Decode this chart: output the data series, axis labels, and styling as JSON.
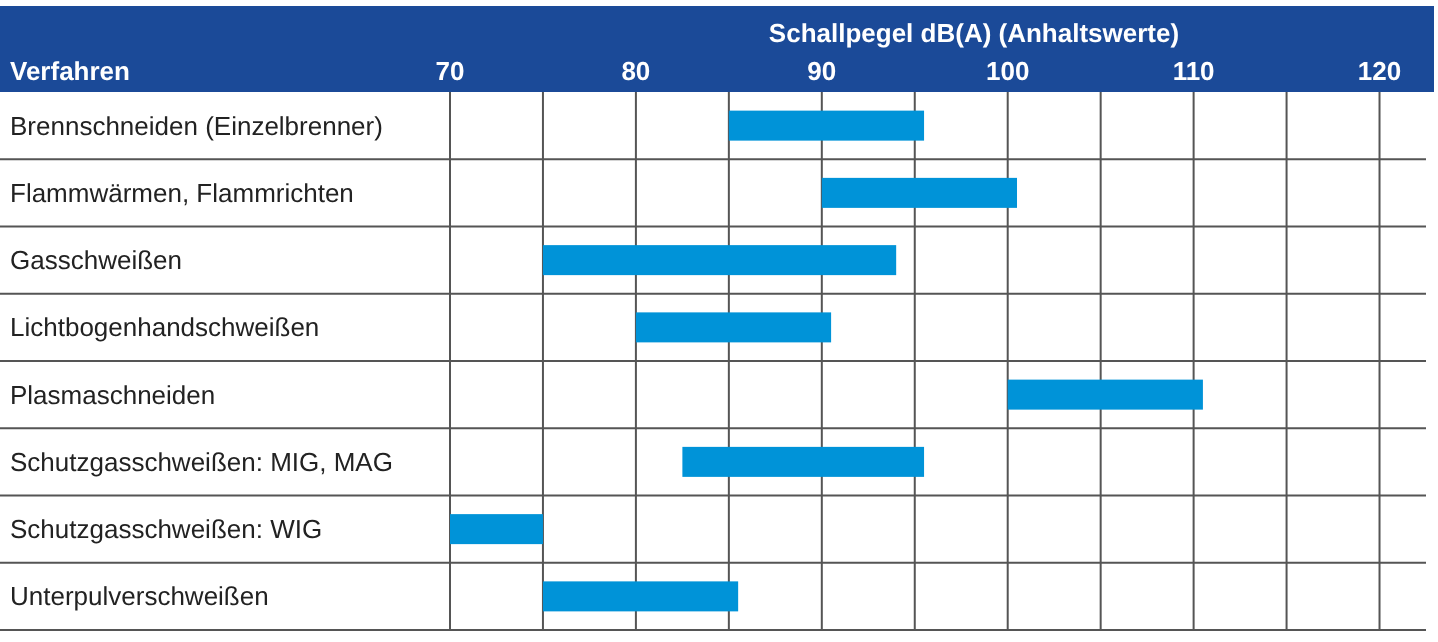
{
  "chart_data": {
    "type": "bar",
    "orientation": "horizontal",
    "xlabel": "Schallpegel dB(A) (Anhaltswerte)",
    "ylabel": "Verfahren",
    "categories": [
      "Brennschneiden (Einzelbrenner)",
      "Flammwärmen, Flammrichten",
      "Gasschweißen",
      "Lichtbogenhandschweißen",
      "Plasmaschneiden",
      "Schutzgasschweißen: MIG, MAG",
      "Schutzgasschweißen: WIG",
      "Unterpulverschweißen"
    ],
    "base": [
      85,
      90,
      75,
      80,
      100,
      82.5,
      70,
      75
    ],
    "values": [
      10.5,
      10.5,
      19,
      10.5,
      10.5,
      13,
      5,
      10.5
    ],
    "color": "#0093d8",
    "xlim": [
      70,
      122.5
    ],
    "xticks": [
      70,
      {
        "value": 75,
        "label": null
      },
      80,
      {
        "value": 85,
        "label": null
      },
      90,
      {
        "value": 95,
        "label": null
      },
      100,
      {
        "value": 105,
        "label": null
      },
      110,
      {
        "value": 115,
        "label": null
      },
      120
    ],
    "grid": true
  }
}
